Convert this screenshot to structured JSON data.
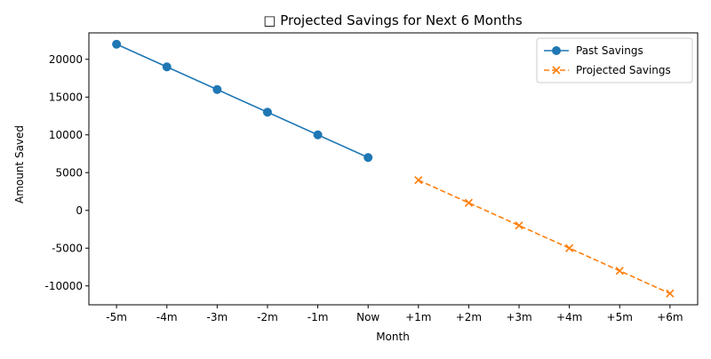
{
  "chart_data": {
    "type": "line",
    "title": "□ Projected Savings for Next 6 Months",
    "xlabel": "Month",
    "ylabel": "Amount Saved",
    "categories": [
      "-5m",
      "-4m",
      "-3m",
      "-2m",
      "-1m",
      "Now",
      "+1m",
      "+2m",
      "+3m",
      "+4m",
      "+5m",
      "+6m"
    ],
    "ylim": [
      -12500,
      23500
    ],
    "yticks": [
      -10000,
      -5000,
      0,
      5000,
      10000,
      15000,
      20000
    ],
    "grid": false,
    "legend_position": "top-right",
    "series": [
      {
        "name": "Past Savings",
        "color": "#1f77b4",
        "marker": "circle",
        "linestyle": "solid",
        "x": [
          "-5m",
          "-4m",
          "-3m",
          "-2m",
          "-1m",
          "Now"
        ],
        "values": [
          22000,
          19000,
          16000,
          13000,
          10000,
          7000
        ]
      },
      {
        "name": "Projected Savings",
        "color": "#ff7f0e",
        "marker": "x",
        "linestyle": "dashed",
        "x": [
          "+1m",
          "+2m",
          "+3m",
          "+4m",
          "+5m",
          "+6m"
        ],
        "values": [
          4000,
          1000,
          -2000,
          -5000,
          -8000,
          -11000
        ]
      }
    ]
  }
}
